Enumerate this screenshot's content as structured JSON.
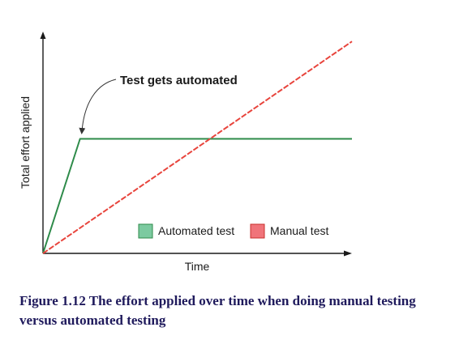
{
  "chart_data": {
    "type": "line",
    "xlabel": "Time",
    "ylabel": "Total effort applied",
    "grid": false,
    "legend_placement": "bottom-right",
    "series": [
      {
        "name": "Automated test",
        "color": "#2e8b4a",
        "legend_color": "#7ccaa0",
        "points": [
          [
            0,
            0
          ],
          [
            1.2,
            1.0
          ],
          [
            10,
            1.0
          ]
        ]
      },
      {
        "name": "Manual test",
        "color": "#e8443c",
        "legend_color": "#f0747a",
        "points": [
          [
            0,
            0
          ],
          [
            10,
            1.85
          ]
        ]
      }
    ],
    "xlim": [
      0,
      10
    ],
    "ylim": [
      0,
      2.0
    ],
    "annotations": [
      {
        "text": "Test gets automated",
        "points_to": [
          1.2,
          1.0
        ]
      }
    ]
  },
  "caption": "Figure 1.12 The effort applied over time when doing manual testing versus automated testing"
}
